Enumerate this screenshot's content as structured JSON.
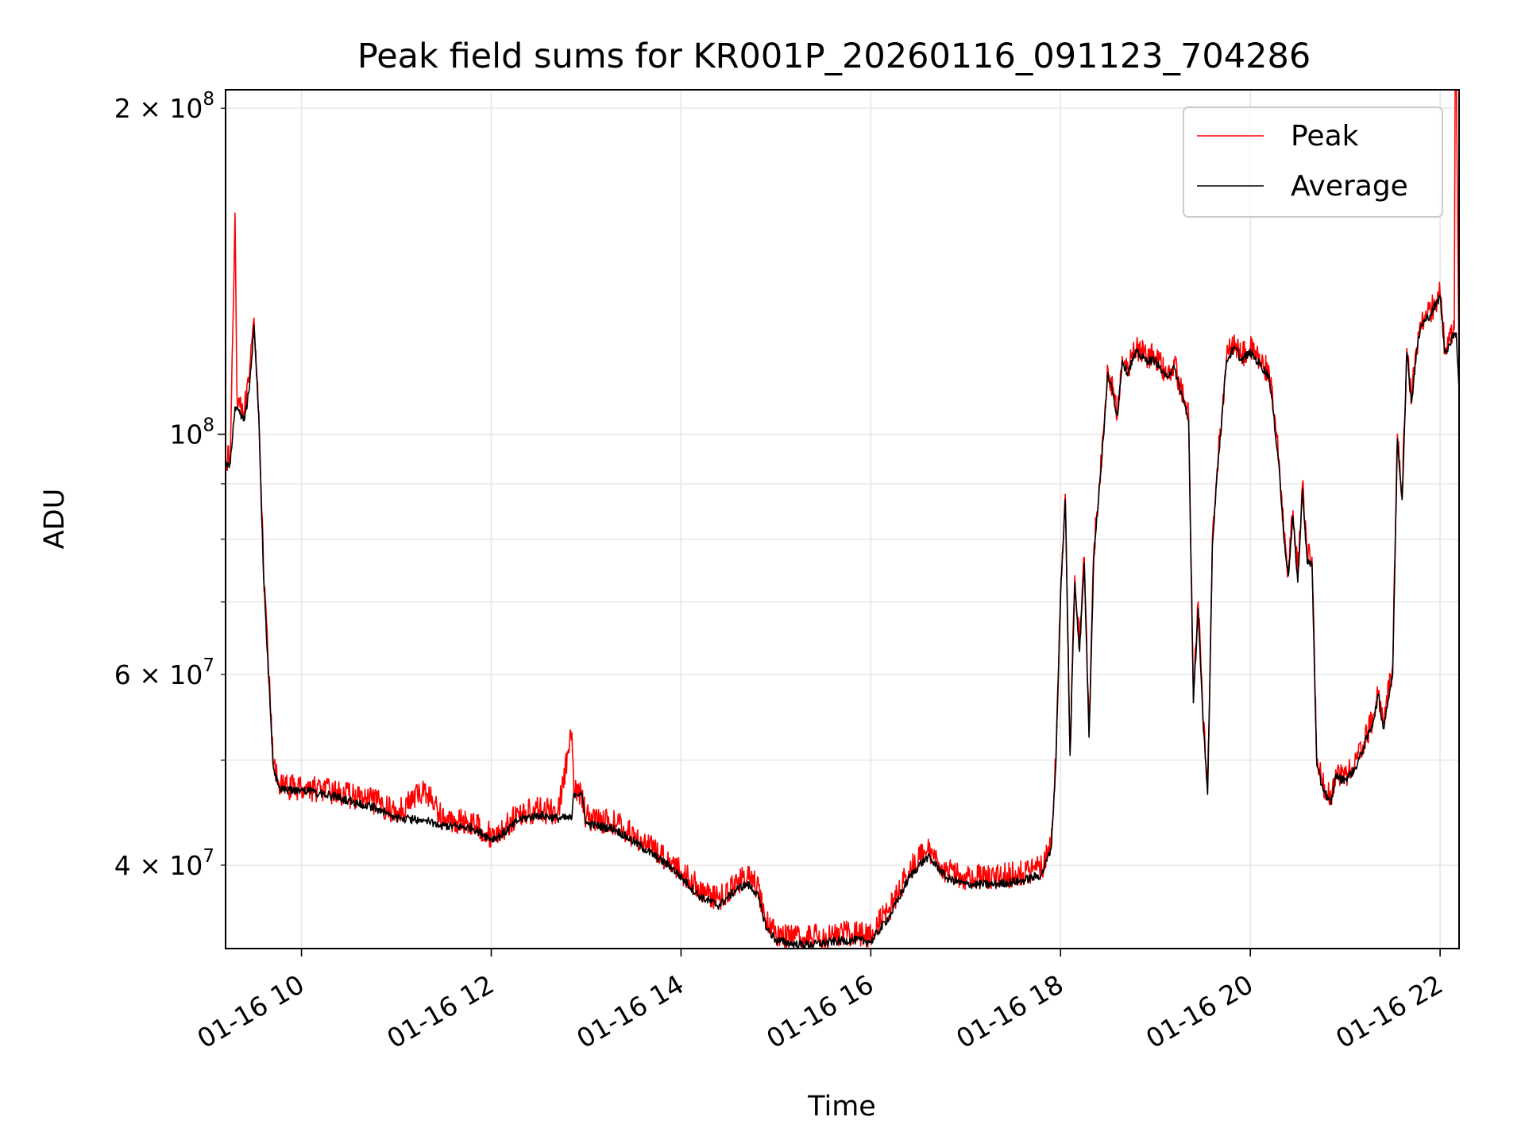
{
  "chart_data": {
    "type": "line",
    "title": "Peak field sums for KR001P_20260116_091123_704286",
    "xlabel": "Time",
    "ylabel": "ADU",
    "yscale": "log",
    "xlim": [
      9.2,
      22.2
    ],
    "ylim": [
      33500000,
      208000000
    ],
    "grid": true,
    "legend_position": "top-right",
    "x_ticks": [
      {
        "value": 10,
        "label": "01-16 10"
      },
      {
        "value": 12,
        "label": "01-16 12"
      },
      {
        "value": 14,
        "label": "01-16 14"
      },
      {
        "value": 16,
        "label": "01-16 16"
      },
      {
        "value": 18,
        "label": "01-16 18"
      },
      {
        "value": 20,
        "label": "01-16 20"
      },
      {
        "value": 22,
        "label": "01-16 22"
      }
    ],
    "y_major_ticks": [
      {
        "value": 100000000,
        "label_base": "10",
        "label_exp": "8"
      }
    ],
    "y_minor_ticks": [
      {
        "value": 40000000,
        "label_coef": "4",
        "label_exp": "7"
      },
      {
        "value": 60000000,
        "label_coef": "6",
        "label_exp": "7"
      },
      {
        "value": 200000000,
        "label_coef": "2",
        "label_exp": "8"
      }
    ],
    "y_minor_unlabeled": [
      50000000,
      70000000,
      80000000,
      90000000
    ],
    "series": [
      {
        "name": "Peak",
        "color": "#ff0000",
        "x": [
          9.2,
          9.25,
          9.3,
          9.32,
          9.34,
          9.4,
          9.45,
          9.5,
          9.55,
          9.6,
          9.7,
          9.75,
          9.8,
          10.0,
          10.2,
          10.5,
          10.8,
          11.0,
          11.3,
          11.5,
          11.8,
          12.0,
          12.1,
          12.3,
          12.5,
          12.7,
          12.85,
          12.87,
          12.95,
          13.0,
          13.3,
          13.6,
          13.9,
          14.0,
          14.2,
          14.4,
          14.6,
          14.7,
          14.8,
          14.9,
          15.0,
          15.2,
          15.4,
          15.6,
          15.8,
          15.9,
          16.0,
          16.2,
          16.4,
          16.5,
          16.6,
          16.7,
          16.8,
          17.0,
          17.3,
          17.6,
          17.8,
          17.9,
          17.95,
          18.0,
          18.05,
          18.1,
          18.15,
          18.2,
          18.25,
          18.3,
          18.35,
          18.45,
          18.5,
          18.6,
          18.65,
          18.7,
          18.8,
          18.9,
          19.0,
          19.1,
          19.2,
          19.35,
          19.4,
          19.45,
          19.5,
          19.55,
          19.6,
          19.65,
          19.75,
          19.8,
          19.85,
          19.9,
          20.0,
          20.1,
          20.2,
          20.3,
          20.35,
          20.4,
          20.45,
          20.5,
          20.55,
          20.6,
          20.65,
          20.7,
          20.75,
          20.85,
          20.9,
          20.95,
          21.0,
          21.1,
          21.2,
          21.3,
          21.35,
          21.4,
          21.5,
          21.55,
          21.6,
          21.65,
          21.7,
          21.75,
          21.8,
          21.9,
          22.0,
          22.05,
          22.1,
          22.15,
          22.16,
          22.17,
          22.2
        ],
        "values": [
          95000000,
          95000000,
          160000000,
          109000000,
          108000000,
          105000000,
          112000000,
          128000000,
          105000000,
          75000000,
          50000000,
          48000000,
          47200000,
          47200000,
          47000000,
          46400000,
          45700000,
          44700000,
          47000000,
          44000000,
          43800000,
          42600000,
          43000000,
          44600000,
          45000000,
          44700000,
          53000000,
          46700000,
          46700000,
          44300000,
          43800000,
          42000000,
          40300000,
          39500000,
          38000000,
          37200000,
          38700000,
          39000000,
          38300000,
          35500000,
          34600000,
          34200000,
          34300000,
          34500000,
          34600000,
          34600000,
          34500000,
          36500000,
          39500000,
          40500000,
          41300000,
          40500000,
          39500000,
          39000000,
          39000000,
          39300000,
          39800000,
          42000000,
          50000000,
          72000000,
          88000000,
          51000000,
          74000000,
          64000000,
          77000000,
          53000000,
          78000000,
          100000000,
          115000000,
          105000000,
          118000000,
          115000000,
          120000000,
          118000000,
          118000000,
          114000000,
          116000000,
          104000000,
          57000000,
          70000000,
          55000000,
          47000000,
          80000000,
          93000000,
          118000000,
          120000000,
          121000000,
          118000000,
          120000000,
          117000000,
          114000000,
          95000000,
          82000000,
          75000000,
          85000000,
          74000000,
          90000000,
          77000000,
          77000000,
          50000000,
          48000000,
          46000000,
          49000000,
          48500000,
          48500000,
          49500000,
          52000000,
          55000000,
          58000000,
          54000000,
          61000000,
          100000000,
          88000000,
          120000000,
          108000000,
          120000000,
          127000000,
          130000000,
          135000000,
          120000000,
          122000000,
          125000000,
          220000000,
          220000000,
          115000000
        ],
        "noise": 0.012
      },
      {
        "name": "Average",
        "color": "#000000",
        "x": [
          9.2,
          9.25,
          9.3,
          9.32,
          9.34,
          9.4,
          9.45,
          9.5,
          9.55,
          9.6,
          9.7,
          9.75,
          9.8,
          10.0,
          10.2,
          10.5,
          10.8,
          11.0,
          11.3,
          11.5,
          11.8,
          12.0,
          12.1,
          12.3,
          12.5,
          12.7,
          12.85,
          12.87,
          12.95,
          13.0,
          13.3,
          13.6,
          13.9,
          14.0,
          14.2,
          14.4,
          14.6,
          14.7,
          14.8,
          14.9,
          15.0,
          15.2,
          15.4,
          15.6,
          15.8,
          15.9,
          16.0,
          16.2,
          16.4,
          16.5,
          16.6,
          16.7,
          16.8,
          17.0,
          17.3,
          17.6,
          17.8,
          17.9,
          17.95,
          18.0,
          18.05,
          18.1,
          18.15,
          18.2,
          18.25,
          18.3,
          18.35,
          18.45,
          18.5,
          18.6,
          18.65,
          18.7,
          18.8,
          18.9,
          19.0,
          19.1,
          19.2,
          19.35,
          19.4,
          19.45,
          19.5,
          19.55,
          19.6,
          19.65,
          19.75,
          19.8,
          19.85,
          19.9,
          20.0,
          20.1,
          20.2,
          20.3,
          20.35,
          20.4,
          20.45,
          20.5,
          20.55,
          20.6,
          20.65,
          20.7,
          20.75,
          20.85,
          20.9,
          20.95,
          21.0,
          21.1,
          21.2,
          21.3,
          21.35,
          21.4,
          21.5,
          21.55,
          21.6,
          21.65,
          21.7,
          21.75,
          21.8,
          21.9,
          22.0,
          22.05,
          22.1,
          22.15,
          22.16,
          22.17,
          22.2
        ],
        "values": [
          94000000,
          94000000,
          106000000,
          106000000,
          105000000,
          103000000,
          110000000,
          126000000,
          104000000,
          74000000,
          49500000,
          47500000,
          46900000,
          46900000,
          46600000,
          45900000,
          45100000,
          44200000,
          44000000,
          43500000,
          43300000,
          42300000,
          42600000,
          44100000,
          44500000,
          44200000,
          44200000,
          46600000,
          46600000,
          43700000,
          43200000,
          41500000,
          39800000,
          39000000,
          37400000,
          36700000,
          38100000,
          38400000,
          37700000,
          35000000,
          34100000,
          33800000,
          33800000,
          34000000,
          34100000,
          34100000,
          34000000,
          35900000,
          38900000,
          39900000,
          40700000,
          39900000,
          38900000,
          38400000,
          38400000,
          38700000,
          39200000,
          41400000,
          49500000,
          71000000,
          87000000,
          50500000,
          73000000,
          63000000,
          76000000,
          52500000,
          77000000,
          99000000,
          114000000,
          104000000,
          117000000,
          114000000,
          119000000,
          117000000,
          117000000,
          113000000,
          115000000,
          103000000,
          56500000,
          69000000,
          54500000,
          46500000,
          79000000,
          92000000,
          117000000,
          119000000,
          120000000,
          117000000,
          119000000,
          116000000,
          113000000,
          94000000,
          81000000,
          74000000,
          84000000,
          73000000,
          89000000,
          76000000,
          76000000,
          49500000,
          47500000,
          45500000,
          48500000,
          48000000,
          48000000,
          49000000,
          51500000,
          54500000,
          57500000,
          53500000,
          60000000,
          99000000,
          87000000,
          119000000,
          107000000,
          119000000,
          126000000,
          129000000,
          134000000,
          119000000,
          121000000,
          124000000,
          124000000,
          124000000,
          110000000
        ],
        "noise": 0.004
      }
    ]
  }
}
